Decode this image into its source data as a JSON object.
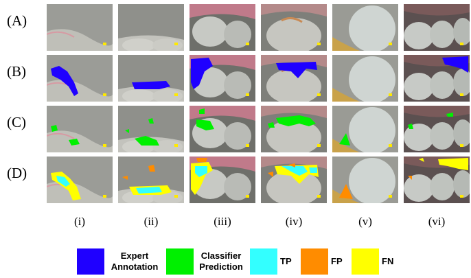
{
  "rows": [
    "(A)",
    "(B)",
    "(C)",
    "(D)"
  ],
  "columns": [
    "(i)",
    "(ii)",
    "(iii)",
    "(iv)",
    "(v)",
    "(vi)"
  ],
  "legend": [
    {
      "line1": "Expert",
      "line2": "Annotation",
      "color": "#1f00ff"
    },
    {
      "line1": "Classifier",
      "line2": "Prediction",
      "color": "#00f000"
    },
    {
      "line1": "TP",
      "line2": "",
      "color": "#33ffff"
    },
    {
      "line1": "FP",
      "line2": "",
      "color": "#ff8c00"
    },
    {
      "line1": "FN",
      "line2": "",
      "color": "#ffff00"
    }
  ]
}
